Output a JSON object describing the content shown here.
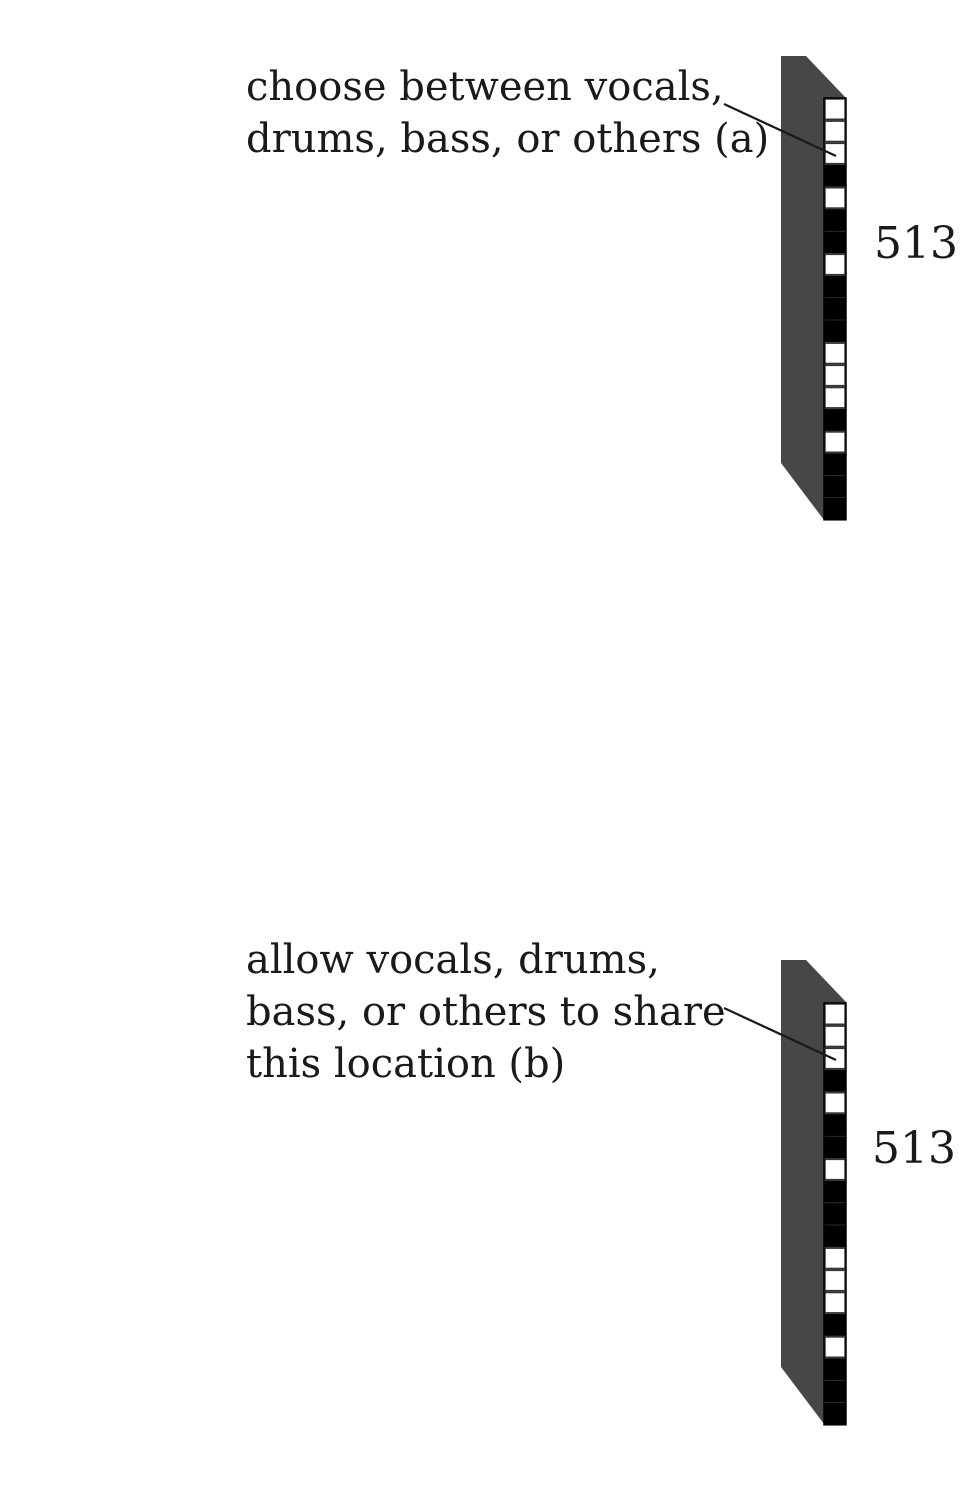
{
  "colors": {
    "slab_face": "#474747",
    "cell_on": "#000000",
    "cell_off": "#ffffff",
    "text": "#1a1a1a",
    "leader": "#1a1a1a"
  },
  "panels": [
    {
      "id": "a",
      "annotation_lines": [
        "choose between vocals,",
        "drums, bass, or others (a)"
      ],
      "dimension_label": "513",
      "cells": [
        0,
        0,
        0,
        1,
        0,
        1,
        1,
        0,
        1,
        1,
        1,
        0,
        0,
        0,
        1,
        0,
        1,
        1,
        1
      ]
    },
    {
      "id": "b",
      "annotation_lines": [
        "allow vocals, drums,",
        "bass, or others to share",
        "this location (b)"
      ],
      "dimension_label": "513",
      "cells": [
        0,
        0,
        0,
        1,
        0,
        1,
        1,
        0,
        1,
        1,
        1,
        0,
        0,
        0,
        1,
        0,
        1,
        1,
        1
      ]
    }
  ]
}
